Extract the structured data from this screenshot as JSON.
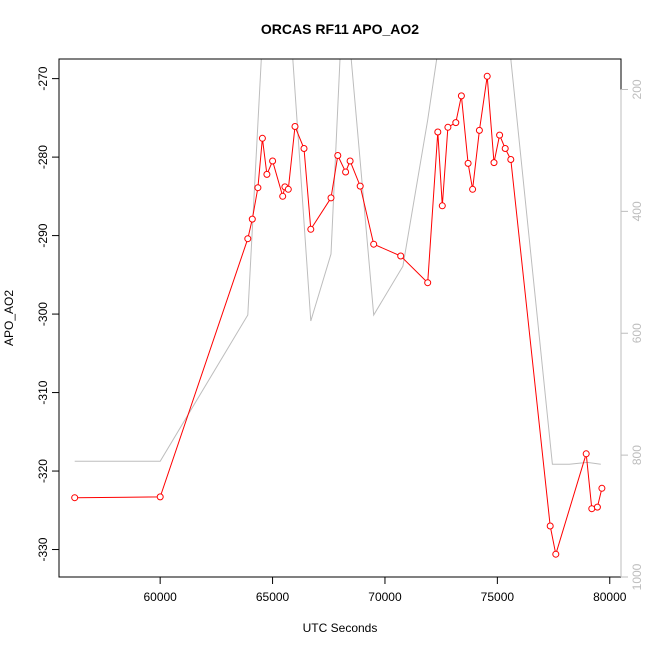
{
  "chart_data": {
    "type": "line",
    "title": "ORCAS RF11 APO_AO2",
    "xlabel": "UTC Seconds",
    "ylabel": "APO_AO2",
    "xlim": [
      55500,
      80500
    ],
    "ylim": [
      -333.5,
      -267.5
    ],
    "y2lim": [
      1000,
      150
    ],
    "x_ticks": [
      60000,
      65000,
      70000,
      75000,
      80000
    ],
    "x_tick_labels": [
      "60000",
      "65000",
      "70000",
      "75000",
      "80000"
    ],
    "y_ticks": [
      -330,
      -320,
      -310,
      -300,
      -290,
      -280,
      -270
    ],
    "y_tick_labels": [
      "-330",
      "-320",
      "-310",
      "-300",
      "-290",
      "-280",
      "-270"
    ],
    "y2_ticks": [
      200,
      400,
      600,
      800,
      1000
    ],
    "y2_tick_labels": [
      "200",
      "400",
      "600",
      "800",
      "1000"
    ],
    "colors": {
      "series": "#ff0000",
      "secondary": "#bdbdbd",
      "axes": "#000000"
    },
    "series": [
      {
        "marker": "open-circle",
        "color": "#ff0000",
        "x": [
          56200,
          60000,
          63900,
          64100,
          64350,
          64550,
          64750,
          65000,
          65450,
          65550,
          65700,
          66000,
          66400,
          66700,
          67600,
          67900,
          68250,
          68450,
          68900,
          69500,
          70700,
          71900,
          72350,
          72550,
          72800,
          73150,
          73400,
          73700,
          73900,
          74200,
          74550,
          74850,
          75100,
          75350,
          75600,
          77350,
          77600,
          78950,
          79200,
          79450,
          79650
        ],
        "y": [
          -323.4,
          -323.3,
          -290.4,
          -287.9,
          -283.9,
          -277.6,
          -282.2,
          -280.5,
          -285.0,
          -283.8,
          -284.1,
          -276.1,
          -278.9,
          -289.2,
          -285.2,
          -279.8,
          -281.9,
          -280.5,
          -283.7,
          -291.1,
          -292.6,
          -296.0,
          -276.8,
          -286.2,
          -276.2,
          -275.6,
          -272.2,
          -280.8,
          -284.1,
          -276.6,
          -269.7,
          -280.7,
          -277.2,
          -278.9,
          -280.3,
          -327.0,
          -330.6,
          -317.8,
          -324.8,
          -324.6,
          -322.2
        ]
      },
      {
        "axis": "right",
        "color": "#bdbdbd",
        "x": [
          56200,
          60000,
          63900,
          64500,
          65000,
          65900,
          66700,
          67600,
          68000,
          68500,
          69500,
          70800,
          71900,
          72300,
          72600,
          72800,
          73100,
          73200,
          73250,
          73400,
          73450,
          73550,
          74100,
          74200,
          74250,
          74400,
          74450,
          74600,
          75100,
          75600,
          77450,
          78200,
          79000,
          79600
        ],
        "y": [
          810,
          810,
          570,
          150,
          150,
          150,
          580,
          470,
          150,
          150,
          570,
          490,
          250,
          150,
          150,
          150,
          150,
          150,
          50,
          50,
          65,
          75,
          75,
          50,
          50,
          65,
          50,
          50,
          150,
          150,
          815,
          815,
          812,
          815
        ]
      }
    ]
  }
}
